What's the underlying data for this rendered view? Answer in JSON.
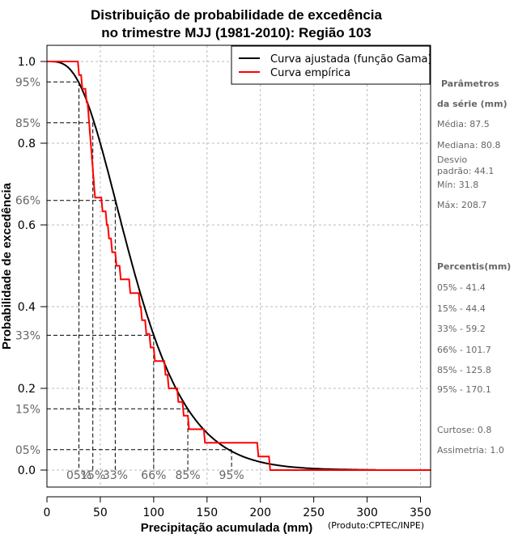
{
  "chart_data": {
    "type": "line",
    "title": "Distribuição de probabilidade de excedência",
    "subtitle": "no trimestre MJJ (1981-2010): Região 103",
    "xlabel": "Precipitação acumulada (mm)",
    "ylabel": "Probabilidade de excedência",
    "xlim": [
      0,
      360
    ],
    "ylim": [
      -0.04,
      1.03
    ],
    "x_ticks": [
      0,
      50,
      100,
      150,
      200,
      250,
      300,
      350
    ],
    "y_ticks": [
      0.0,
      0.2,
      0.4,
      0.6,
      0.8,
      1.0
    ],
    "y_tick_labels": [
      "0.0",
      "0.2",
      "0.4",
      "0.6",
      "0.8",
      "1.0"
    ],
    "grid": true,
    "legend": {
      "placement": "top-right",
      "entries": [
        {
          "label": "Curva ajustada (função Gama)",
          "color": "#000000"
        },
        {
          "label": "Curva empírica",
          "color": "#ff0000"
        }
      ]
    },
    "gamma_params": {
      "mean": 87.5,
      "sd": 44.1,
      "x_max": 308
    },
    "series": [
      {
        "name": "Curva empírica",
        "color": "#ff0000",
        "type": "step",
        "sample_values": [
          29,
          32,
          36,
          38,
          39,
          40,
          41,
          42,
          43,
          44,
          51,
          55,
          57,
          60,
          64,
          68,
          77,
          86,
          88,
          92,
          96,
          100,
          110,
          113,
          122,
          127,
          132,
          147,
          197,
          208
        ],
        "x_end": 360
      }
    ],
    "percentile_markers": [
      {
        "label": "05%",
        "prob": 0.95,
        "x": 30
      },
      {
        "label": "15%",
        "prob": 0.85,
        "x": 43
      },
      {
        "label": "33%",
        "prob": 0.66,
        "x": 64
      },
      {
        "label": "66%",
        "prob": 0.33,
        "x": 100
      },
      {
        "label": "85%",
        "prob": 0.15,
        "x": 132
      },
      {
        "label": "95%",
        "prob": 0.05,
        "x": 173
      }
    ],
    "y_percent_labels": [
      {
        "label": "95%",
        "prob": 0.95
      },
      {
        "label": "85%",
        "prob": 0.85
      },
      {
        "label": "66%",
        "prob": 0.66
      },
      {
        "label": "33%",
        "prob": 0.33
      },
      {
        "label": "15%",
        "prob": 0.15
      },
      {
        "label": "05%",
        "prob": 0.05
      }
    ]
  },
  "credit": "(Produto:CPTEC/INPE)",
  "sidebar": {
    "params_head_1": "Parâmetros",
    "params_head_2": "da série (mm)",
    "media": "Média: 87.5",
    "mediana": "Mediana: 80.8",
    "desvio_1": "Desvio",
    "desvio_2": "padrão: 44.1",
    "min": "Mín: 31.8",
    "max": "Máx: 208.7",
    "percentis_head": "Percentis(mm)",
    "percentis": [
      "05% - 41.4",
      "15% - 44.4",
      "33% - 59.2",
      "66% - 101.7",
      "85% - 125.8",
      "95% - 170.1"
    ],
    "curtose": "Curtose: 0.8",
    "assimetria": "Assimetria: 1.0"
  }
}
